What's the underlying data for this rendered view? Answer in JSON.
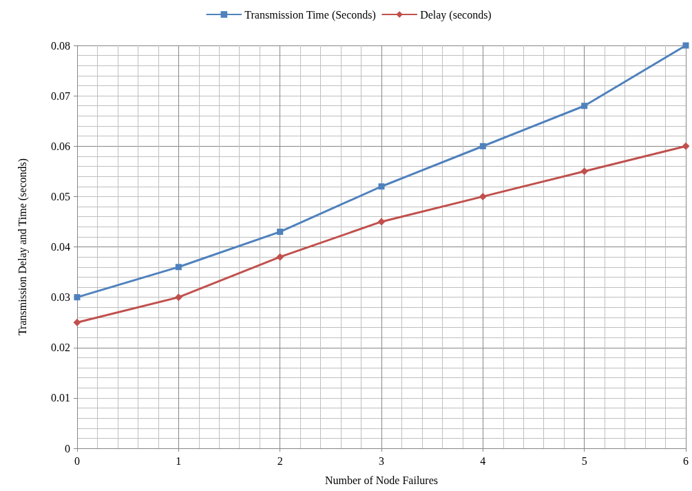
{
  "chart_data": {
    "type": "line",
    "xlabel": "Number of Node Failures",
    "ylabel": "Transmission Delay and Time (seconds)",
    "x": [
      0,
      1,
      2,
      3,
      4,
      5,
      6
    ],
    "series": [
      {
        "name": "Transmission Time (Seconds)",
        "color": "#4f81bd",
        "marker": "square",
        "values": [
          0.03,
          0.036,
          0.043,
          0.052,
          0.06,
          0.068,
          0.08
        ]
      },
      {
        "name": "Delay (seconds)",
        "color": "#c0504d",
        "marker": "diamond",
        "values": [
          0.025,
          0.03,
          0.038,
          0.045,
          0.05,
          0.055,
          0.06
        ]
      }
    ],
    "xlim": [
      0,
      6
    ],
    "xticks": [
      0,
      1,
      2,
      3,
      4,
      5,
      6
    ],
    "ylim": [
      0,
      0.08
    ],
    "yticks": [
      0,
      0.01,
      0.02,
      0.03,
      0.04,
      0.05,
      0.06,
      0.07,
      0.08
    ],
    "grid": true,
    "legend": "top",
    "line_style": "solid"
  }
}
